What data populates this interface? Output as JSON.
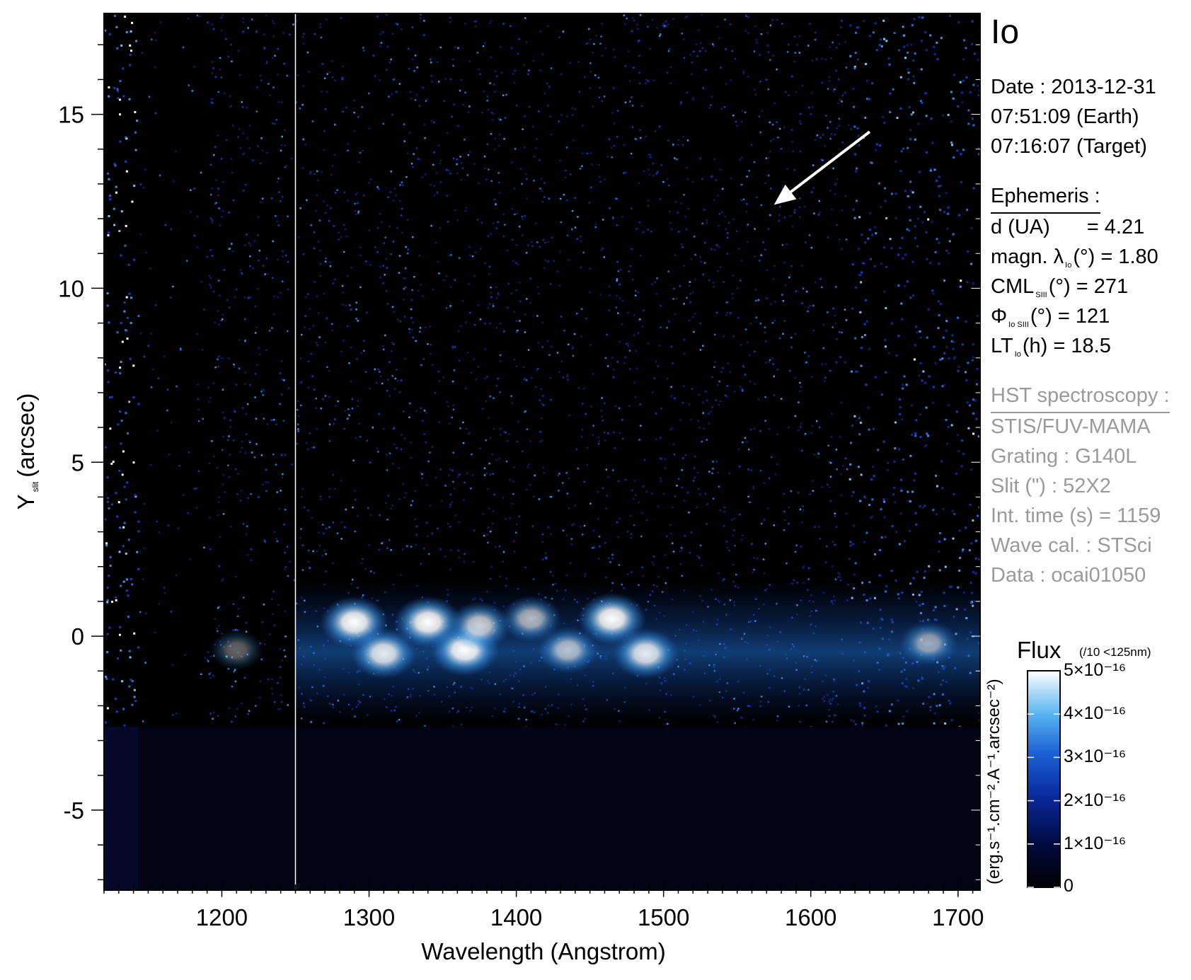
{
  "colors": {
    "background": "#000000",
    "noise_low": "#0a2a8c",
    "noise_mid": "#1f6fd0",
    "noise_high": "#ffffff",
    "masked_region": "#030314",
    "axis": "#000000",
    "gray_text": "#9a9a9a",
    "arrow": "#ffffff"
  },
  "chart_data": {
    "type": "heatmap",
    "title": "Io",
    "xlabel": "Wavelength (Angstrom)",
    "ylabel_main": "Y",
    "ylabel_sub": "slit",
    "ylabel_unit": "(arcsec)",
    "xlim": [
      1120,
      1715
    ],
    "ylim": [
      -7.3,
      17.9
    ],
    "x_ticks": [
      1200,
      1300,
      1400,
      1500,
      1600,
      1700
    ],
    "y_ticks": [
      -5,
      0,
      5,
      10,
      15
    ],
    "x_minor_step": 10,
    "y_minor_step": 1,
    "detector_edge_y": -2.6,
    "vertical_line_x": 1250,
    "arrow": {
      "from": [
        1640,
        14.5
      ],
      "to": [
        1575,
        12.4
      ]
    },
    "emission_blobs": [
      {
        "x": 1290,
        "y": 0.4,
        "intensity": 1.0
      },
      {
        "x": 1310,
        "y": -0.5,
        "intensity": 0.9
      },
      {
        "x": 1340,
        "y": 0.4,
        "intensity": 1.0
      },
      {
        "x": 1365,
        "y": -0.4,
        "intensity": 1.0
      },
      {
        "x": 1375,
        "y": 0.3,
        "intensity": 0.8
      },
      {
        "x": 1410,
        "y": 0.5,
        "intensity": 0.7
      },
      {
        "x": 1435,
        "y": -0.4,
        "intensity": 0.7
      },
      {
        "x": 1465,
        "y": 0.5,
        "intensity": 1.0
      },
      {
        "x": 1488,
        "y": -0.5,
        "intensity": 0.9
      },
      {
        "x": 1210,
        "y": -0.4,
        "intensity": 0.4
      },
      {
        "x": 1680,
        "y": -0.2,
        "intensity": 0.6
      }
    ],
    "colorbar": {
      "title": "Flux",
      "note": "(/10 <125nm)",
      "unit": "(erg.s⁻¹.cm⁻².A⁻¹.arcsec⁻²)",
      "ticks": [
        "0",
        "1×10⁻¹⁶",
        "2×10⁻¹⁶",
        "3×10⁻¹⁶",
        "4×10⁻¹⁶",
        "5×10⁻¹⁶"
      ],
      "range": [
        0,
        5e-16
      ]
    }
  },
  "info": {
    "title": "Io",
    "date": "Date : 2013-12-31",
    "time_earth": "07:51:09 (Earth)",
    "time_target": "07:16:07 (Target)",
    "ephemeris_header": "Ephemeris :",
    "d_label": "d (UA)",
    "d_value": "= 4.21",
    "magn_label": "magn. λ",
    "magn_sub": "Io",
    "magn_rest": "(°)  = 1.80",
    "cml_label": "CML",
    "cml_sub": "SIII",
    "cml_rest": "(°) = 271",
    "phi_label": "Φ",
    "phi_sub": "Io SIII",
    "phi_rest": "(°) = 121",
    "lt_label": "LT",
    "lt_sub": "Io",
    "lt_rest": "(h) = 18.5",
    "hst_header": "HST spectroscopy :",
    "instrument": "STIS/FUV-MAMA",
    "grating": "Grating : G140L",
    "slit": "Slit (\") : 52X2",
    "int_time": "Int. time (s) = 1159",
    "wave_cal": "Wave cal. : STSci",
    "data_id": "Data : ocai01050"
  }
}
